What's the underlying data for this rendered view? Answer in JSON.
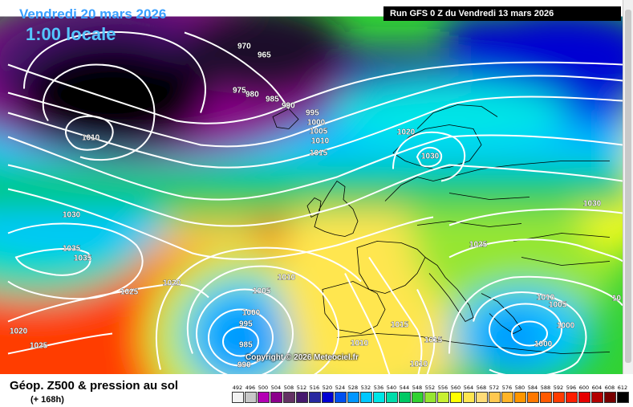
{
  "header": {
    "date": "Vendredi 20 mars 2026",
    "time": "1:00 locale",
    "run": "Run GFS 0 Z du Vendredi 13 mars 2026"
  },
  "copyright": "Copyright © 2026 Meteociel.fr",
  "footer": {
    "title": "Géop. Z500 & pression au sol",
    "subtitle": "(+ 168h)"
  },
  "legend": {
    "values": [
      "492",
      "496",
      "500",
      "504",
      "508",
      "512",
      "516",
      "520",
      "524",
      "528",
      "532",
      "536",
      "540",
      "544",
      "548",
      "552",
      "556",
      "560",
      "564",
      "568",
      "572",
      "576",
      "580",
      "584",
      "588",
      "592",
      "596",
      "600",
      "604",
      "608",
      "612"
    ],
    "colors": [
      "#f2f2f2",
      "#c8c8c8",
      "#b400b4",
      "#8c008c",
      "#643264",
      "#46196e",
      "#2828a0",
      "#0000d2",
      "#0050f0",
      "#0096ff",
      "#00c8ff",
      "#00e6e6",
      "#00dcaa",
      "#00c864",
      "#32d232",
      "#96e632",
      "#c8f032",
      "#ffff00",
      "#ffe650",
      "#ffdc78",
      "#ffc850",
      "#ffb428",
      "#ff9600",
      "#ff7800",
      "#ff5a00",
      "#ff3c00",
      "#ff1e00",
      "#e60000",
      "#b40000",
      "#780000",
      "#000000"
    ]
  },
  "isobars": [
    "970",
    "965",
    "975",
    "980",
    "985",
    "990",
    "995",
    "1000",
    "1005",
    "1010",
    "1015",
    "1010",
    "1020",
    "1030",
    "1030",
    "1035",
    "1035",
    "1030",
    "1025",
    "1020",
    "1025",
    "1020",
    "1025",
    "1010",
    "1005",
    "1000",
    "995",
    "985",
    "990",
    "1010",
    "1015",
    "1015",
    "1010",
    "1010",
    "1005",
    "1000",
    "1000",
    "10"
  ],
  "colors": {
    "header_date": "#3aa0ff",
    "header_time": "#55c6ff",
    "run_box": "#000000"
  }
}
